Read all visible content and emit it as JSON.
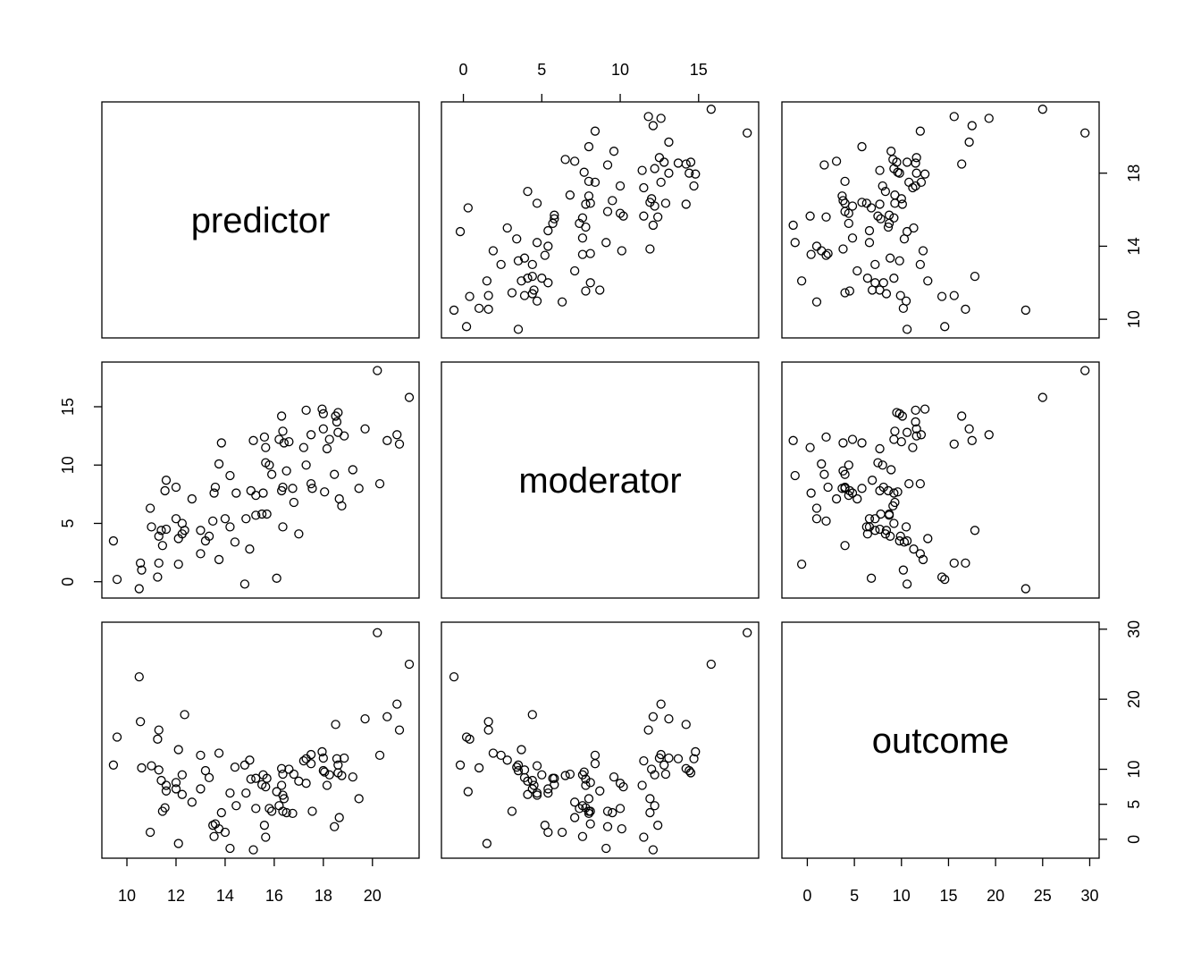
{
  "chart_data": {
    "type": "pairs",
    "variables": [
      {
        "name": "predictor",
        "values": [
          9.45,
          9.6,
          10.55,
          10.6,
          10.5,
          10.95,
          11.0,
          11.3,
          11.3,
          11.25,
          11.45,
          11.4,
          11.6,
          11.55,
          11.6,
          12.0,
          12.0,
          12.1,
          12.1,
          12.25,
          12.35,
          12.25,
          12.65,
          13.0,
          13.2,
          13.0,
          13.35,
          13.55,
          13.6,
          13.5,
          13.75,
          13.85,
          13.75,
          14.0,
          14.2,
          14.2,
          14.45,
          14.4,
          14.85,
          15.0,
          14.8,
          15.05,
          15.15,
          15.25,
          15.25,
          15.5,
          15.55,
          15.6,
          15.65,
          15.65,
          15.7,
          15.8,
          15.9,
          16.1,
          16.2,
          16.3,
          16.35,
          16.4,
          16.5,
          16.35,
          16.3,
          16.35,
          16.6,
          16.75,
          16.8,
          17.0,
          17.2,
          17.3,
          17.3,
          17.5,
          17.55,
          17.5,
          18.0,
          18.0,
          18.05,
          18.15,
          18.25,
          18.5,
          18.55,
          18.6,
          18.45,
          18.65,
          18.75,
          18.85,
          18.6,
          19.2,
          19.45,
          19.7,
          20.2,
          20.3,
          20.6,
          21.0,
          21.1,
          21.5,
          17.95
        ],
        "lim": [
          8.98,
          21.9
        ],
        "xticks": [
          10,
          12,
          14,
          16,
          18,
          20
        ],
        "yticks": [
          10,
          14,
          18
        ]
      },
      {
        "name": "moderator",
        "values": [
          3.5,
          0.2,
          1.6,
          1.0,
          -0.6,
          6.3,
          4.7,
          3.9,
          1.6,
          0.4,
          3.1,
          4.4,
          4.5,
          7.8,
          8.7,
          8.1,
          5.4,
          3.7,
          1.5,
          5.0,
          4.4,
          4.1,
          7.1,
          4.4,
          3.5,
          2.4,
          3.9,
          7.6,
          8.1,
          5.2,
          10.1,
          11.9,
          1.9,
          5.4,
          9.1,
          4.7,
          7.6,
          3.4,
          5.4,
          2.8,
          -0.2,
          7.8,
          12.1,
          5.7,
          7.4,
          5.8,
          7.6,
          12.4,
          11.5,
          10.2,
          5.8,
          10.0,
          9.2,
          0.3,
          12.2,
          14.2,
          12.9,
          11.9,
          9.5,
          4.7,
          7.8,
          8.1,
          12.0,
          8.0,
          6.8,
          4.1,
          11.5,
          14.7,
          10.0,
          12.6,
          8.0,
          8.4,
          14.4,
          13.1,
          7.7,
          11.4,
          12.2,
          14.2,
          13.7,
          12.8,
          9.2,
          7.1,
          6.5,
          12.5,
          14.5,
          9.6,
          8.0,
          13.1,
          18.1,
          8.4,
          12.1,
          12.6,
          11.8,
          15.8,
          14.8
        ],
        "lim": [
          -1.4,
          18.83
        ],
        "xticks": [
          0,
          5,
          10,
          15
        ],
        "yticks": [
          0,
          5,
          10,
          15
        ]
      },
      {
        "name": "outcome",
        "values": [
          10.6,
          14.6,
          16.8,
          10.2,
          23.2,
          1.0,
          10.5,
          9.9,
          15.6,
          14.3,
          4.0,
          8.4,
          7.7,
          4.5,
          6.9,
          8.1,
          7.2,
          12.8,
          -0.6,
          9.2,
          17.8,
          6.4,
          5.3,
          7.2,
          9.8,
          12.0,
          8.8,
          0.4,
          2.2,
          2.0,
          1.5,
          3.8,
          12.3,
          1.0,
          -1.3,
          6.6,
          4.8,
          10.3,
          6.6,
          11.3,
          10.6,
          8.6,
          -1.5,
          8.7,
          4.4,
          7.8,
          9.2,
          2.0,
          0.3,
          7.5,
          8.7,
          4.4,
          4.0,
          6.8,
          4.8,
          10.1,
          9.3,
          5.8,
          3.8,
          6.3,
          7.7,
          4.0,
          10.0,
          3.7,
          9.3,
          8.3,
          11.2,
          11.5,
          8.0,
          12.1,
          4.0,
          10.8,
          9.8,
          11.6,
          9.6,
          7.7,
          9.2,
          16.4,
          11.5,
          10.6,
          1.8,
          3.1,
          9.1,
          11.6,
          9.5,
          8.9,
          5.8,
          17.2,
          29.5,
          12.0,
          17.5,
          19.3,
          15.6,
          25.0,
          12.5
        ],
        "lim": [
          -2.7,
          31.0
        ],
        "xticks": [
          0,
          5,
          10,
          15,
          20,
          25,
          30
        ],
        "yticks": [
          0,
          5,
          10,
          20,
          30
        ]
      }
    ]
  }
}
